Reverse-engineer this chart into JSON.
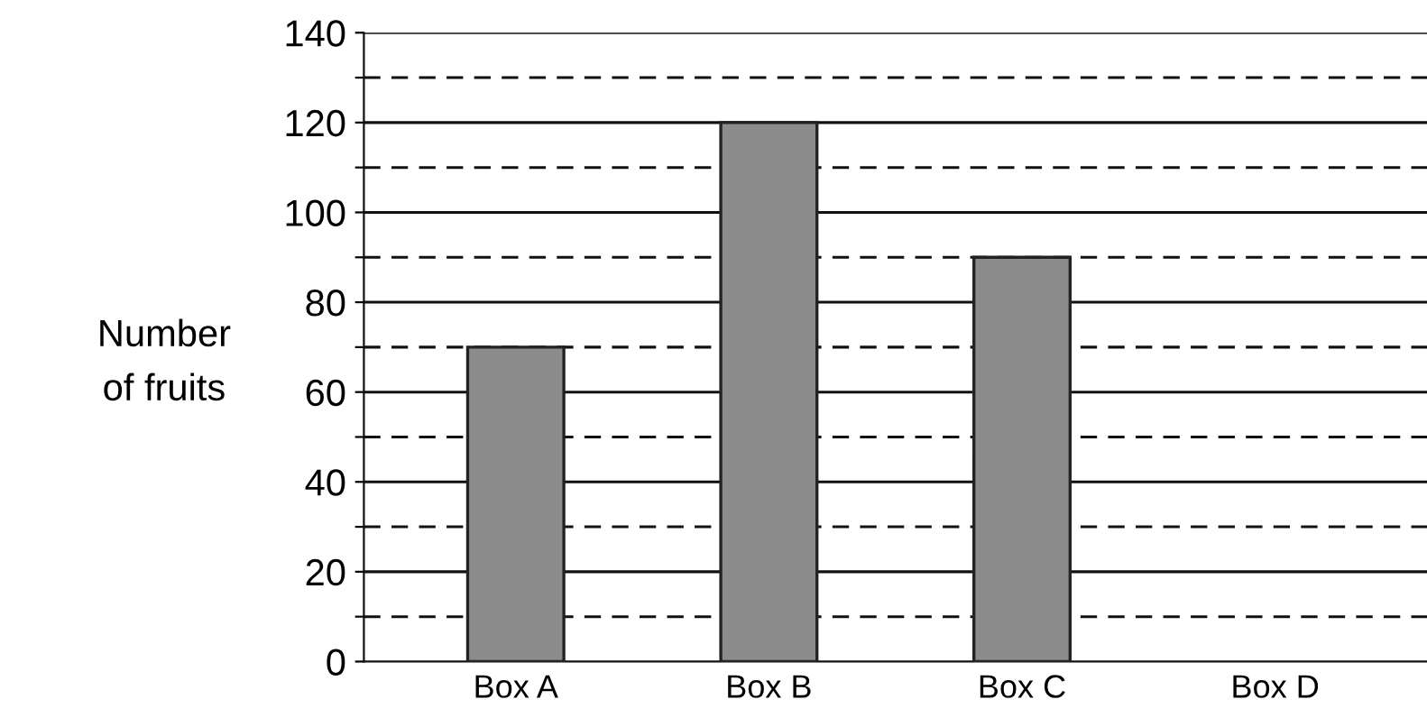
{
  "chart_data": {
    "type": "bar",
    "ylabel": "Number\nof fruits",
    "categories": [
      "Box A",
      "Box B",
      "Box C",
      "Box D"
    ],
    "values": [
      70,
      120,
      90,
      null
    ],
    "color": "#8c8c8c",
    "ylim": [
      0,
      140
    ],
    "yticks": [
      0,
      {
        "value": 10,
        "label": null
      },
      20,
      {
        "value": 30,
        "label": null
      },
      40,
      {
        "value": 50,
        "label": null
      },
      60,
      {
        "value": 70,
        "label": null
      },
      80,
      {
        "value": 90,
        "label": null
      },
      100,
      {
        "value": 110,
        "label": null
      },
      120,
      {
        "value": 130,
        "label": null
      },
      140
    ],
    "grid": "y"
  }
}
